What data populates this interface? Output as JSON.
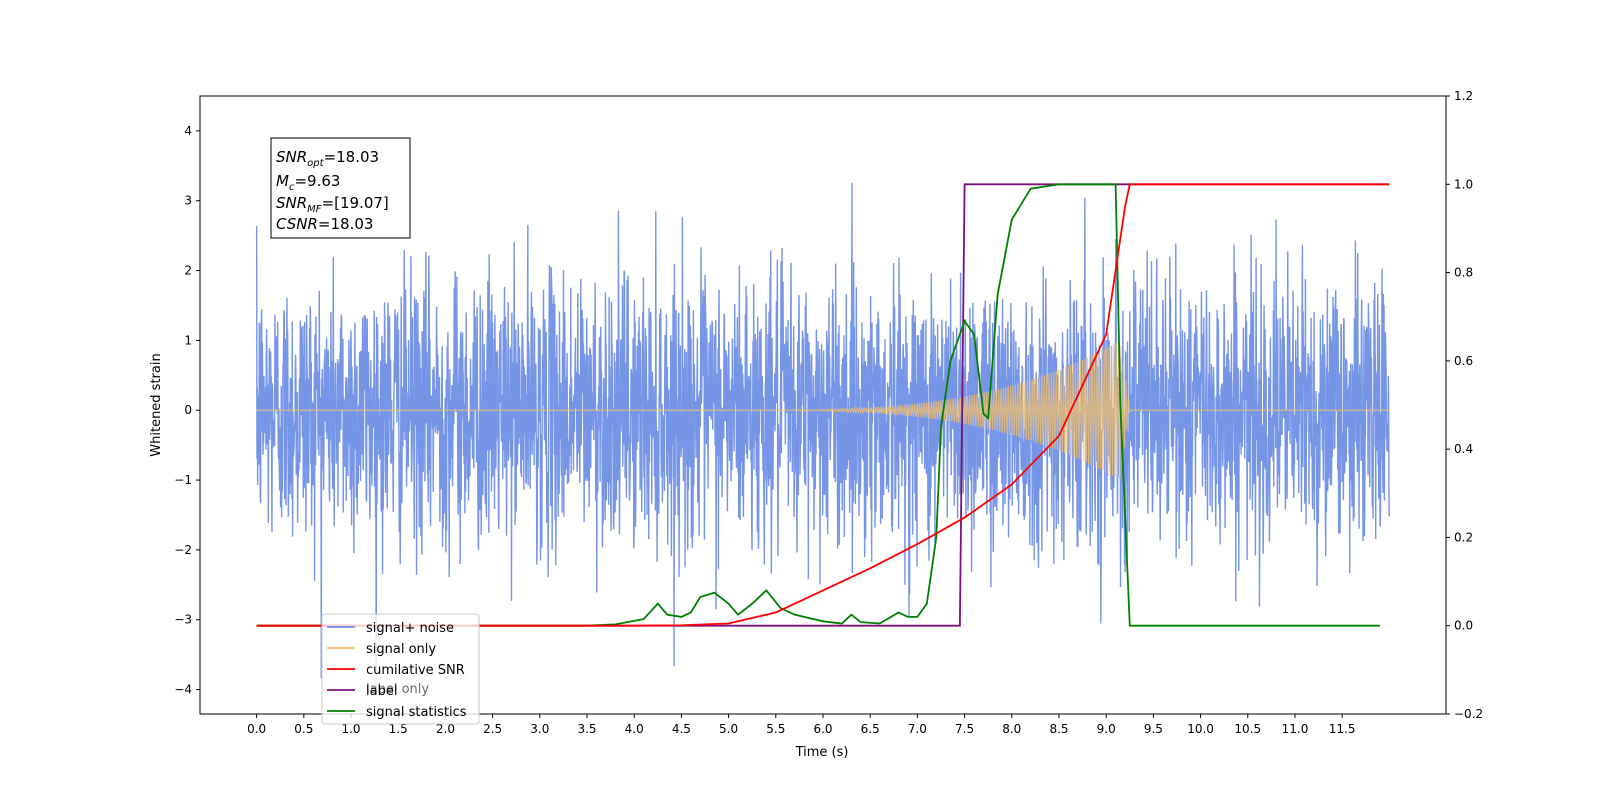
{
  "chart_data": {
    "type": "line",
    "title": "",
    "xlabel": "Time (s)",
    "ylabel": "Whitened strain",
    "y2label": "",
    "xlim": [
      -0.6,
      12.6
    ],
    "ylim": [
      -4.35,
      4.5
    ],
    "y2lim": [
      -0.2,
      1.2
    ],
    "x_ticks": [
      "0.0",
      "0.5",
      "1.0",
      "1.5",
      "2.0",
      "2.5",
      "3.0",
      "3.5",
      "4.0",
      "4.5",
      "5.0",
      "5.5",
      "6.0",
      "6.5",
      "7.0",
      "7.5",
      "8.0",
      "8.5",
      "9.0",
      "9.5",
      "10.0",
      "10.5",
      "11.0",
      "11.5"
    ],
    "y_ticks": [
      "4",
      "3",
      "2",
      "1",
      "0",
      "−1",
      "−2",
      "−3",
      "−4"
    ],
    "y2_ticks": [
      "1.2",
      "1.0",
      "0.8",
      "0.6",
      "0.4",
      "0.2",
      "0.0",
      "−0.2"
    ],
    "grid": false,
    "legend_position": "lower-left",
    "annotation": {
      "snr_opt": "=18.03",
      "mc": "=9.63",
      "snr_mf": "=[19.07]",
      "csnr": "=18.03"
    },
    "series": [
      {
        "name": "signal+ noise",
        "axis": "left",
        "color": "#6f8fe6",
        "description": "whitened noise with std ~1, x 0.0–12.0 s, peaks reaching about ±4.1",
        "x_range": [
          0.0,
          12.0
        ],
        "amplitude_peak": 4.12
      },
      {
        "name": "signal only",
        "axis": "left",
        "color": "#f5c26b",
        "description": "chirp waveform growing until merger at ~9.1 s",
        "start": 5.0,
        "merger": 9.15,
        "end": 9.25,
        "max_amplitude": 1.0
      },
      {
        "name": "cumilative SNR",
        "axis": "right",
        "color": "#ff0000",
        "x": [
          0.0,
          4.0,
          4.5,
          5.0,
          5.5,
          6.0,
          6.5,
          7.0,
          7.5,
          8.0,
          8.5,
          9.0,
          9.2,
          9.25,
          12.0
        ],
        "y": [
          0.0,
          0.0,
          0.001,
          0.005,
          0.03,
          0.08,
          0.13,
          0.185,
          0.245,
          0.32,
          0.43,
          0.66,
          0.95,
          1.0,
          1.0
        ]
      },
      {
        "name": "label",
        "axis": "right",
        "color": "#7b0f7b",
        "x": [
          0.0,
          7.45,
          7.5,
          9.25,
          9.3,
          12.0
        ],
        "y": [
          0.0,
          0.0,
          1.0,
          1.0,
          1.0,
          1.0
        ]
      },
      {
        "name": "label only",
        "axis": "right",
        "color": "#aaaaaa",
        "description": "legend entry partially obscured"
      },
      {
        "name": "signal statistics",
        "axis": "right",
        "color": "#008000",
        "x": [
          0.0,
          3.5,
          3.8,
          4.1,
          4.25,
          4.35,
          4.5,
          4.6,
          4.7,
          4.85,
          5.0,
          5.1,
          5.25,
          5.4,
          5.55,
          5.7,
          6.0,
          6.2,
          6.3,
          6.4,
          6.6,
          6.8,
          6.9,
          7.0,
          7.1,
          7.2,
          7.25,
          7.35,
          7.5,
          7.6,
          7.7,
          7.75,
          7.85,
          8.0,
          8.2,
          8.5,
          9.1,
          9.15,
          9.25,
          11.9
        ],
        "y": [
          0.0,
          0.0,
          0.003,
          0.015,
          0.05,
          0.025,
          0.02,
          0.03,
          0.065,
          0.075,
          0.05,
          0.025,
          0.05,
          0.08,
          0.04,
          0.025,
          0.01,
          0.005,
          0.025,
          0.008,
          0.005,
          0.03,
          0.02,
          0.02,
          0.05,
          0.2,
          0.45,
          0.6,
          0.69,
          0.66,
          0.48,
          0.47,
          0.75,
          0.92,
          0.99,
          1.0,
          1.0,
          0.5,
          0.0,
          0.0
        ]
      }
    ]
  }
}
